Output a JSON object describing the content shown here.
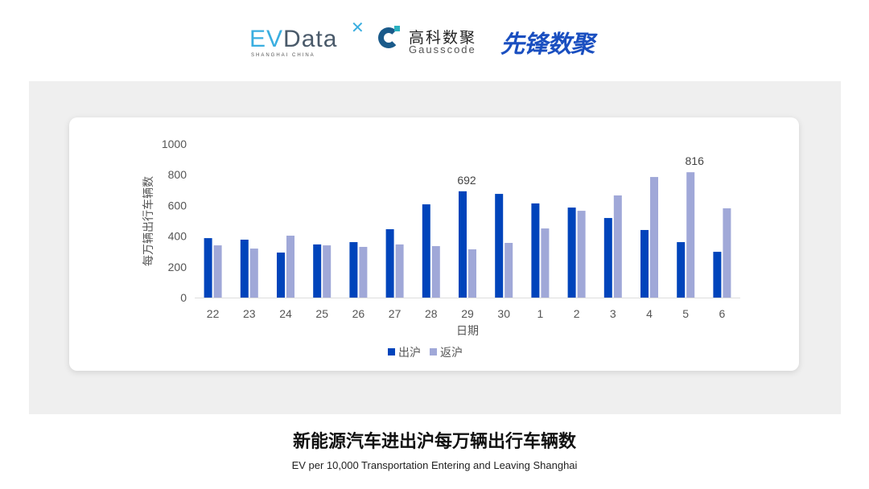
{
  "logos": {
    "evdata": "EVData",
    "evdata_sub": "SHANGHAI CHINA",
    "gauss_cn": "高科数聚",
    "gauss_en": "Gausscode",
    "xianfeng": "先锋数聚"
  },
  "title": "新能源汽车进出沪每万辆出行车辆数",
  "subtitle": "EV per 10,000 Transportation Entering and Leaving Shanghai",
  "chart_data": {
    "type": "bar",
    "xlabel": "日期",
    "ylabel": "每万辆出行车辆数",
    "ylim": [
      0,
      1000
    ],
    "yticks": [
      0,
      200,
      400,
      600,
      800,
      1000
    ],
    "grid": false,
    "legend": "bottom",
    "categories": [
      "22",
      "23",
      "24",
      "25",
      "26",
      "27",
      "28",
      "29",
      "30",
      "1",
      "2",
      "3",
      "4",
      "5",
      "6"
    ],
    "series": [
      {
        "name": "出沪",
        "color": "#0044bb",
        "values": [
          387,
          377,
          293,
          346,
          361,
          445,
          607,
          692,
          675,
          613,
          586,
          518,
          440,
          361,
          298
        ]
      },
      {
        "name": "返沪",
        "color": "#a0a8d8",
        "values": [
          340,
          319,
          403,
          340,
          330,
          346,
          335,
          314,
          356,
          450,
          565,
          665,
          785,
          816,
          581
        ]
      }
    ],
    "data_labels": [
      {
        "series": 0,
        "category": "29",
        "text": "692"
      },
      {
        "series": 1,
        "category": "5",
        "text": "816"
      }
    ]
  }
}
